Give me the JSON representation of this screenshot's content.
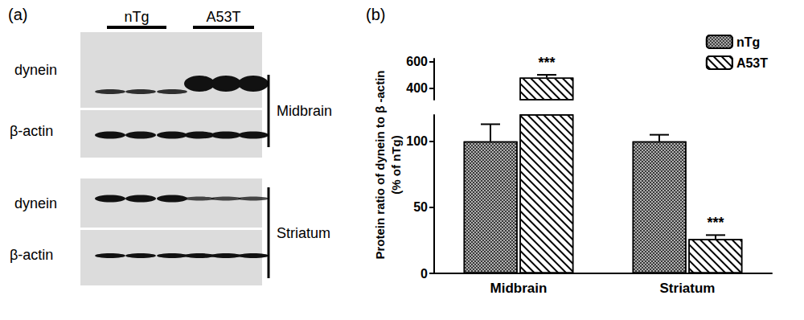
{
  "panel_a": {
    "label": "(a)",
    "groups": [
      "nTg",
      "A53T"
    ],
    "blots": [
      {
        "region": "Midbrain",
        "rows": [
          "dynein",
          "β-actin"
        ]
      },
      {
        "region": "Striatum",
        "rows": [
          "dynein",
          "β-actin"
        ]
      }
    ]
  },
  "chart_data": {
    "type": "bar",
    "panel_label": "(b)",
    "categories": [
      "Midbrain",
      "Striatum"
    ],
    "ylabel": "Protein ratio of dynein to β -actin\n(% of nTg)",
    "series": [
      {
        "name": "nTg",
        "color": "#b0b0b0",
        "values": [
          100,
          100
        ],
        "errors": [
          13,
          5
        ]
      },
      {
        "name": "A53T",
        "color": "#ffffff",
        "values": [
          480,
          26
        ],
        "errors": [
          20,
          3
        ],
        "annotations": [
          "***",
          "***"
        ]
      }
    ],
    "y_segments": [
      {
        "ylim": [
          0,
          120
        ],
        "yticks": [
          0,
          50,
          100
        ]
      },
      {
        "ylim": [
          315,
          620
        ],
        "yticks": [
          400,
          600
        ]
      }
    ],
    "legend": "upper right",
    "grid": false
  }
}
